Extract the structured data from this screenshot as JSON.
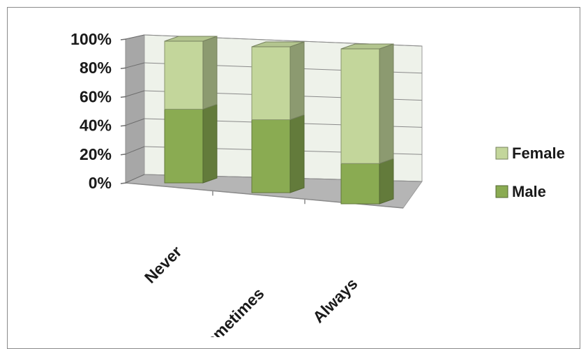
{
  "chart_data": {
    "type": "bar",
    "stacked": "percent",
    "categories": [
      "Never",
      "Sometimes",
      "Always"
    ],
    "series": [
      {
        "name": "Male",
        "values": [
          52,
          50,
          26
        ],
        "color": "#8aab52"
      },
      {
        "name": "Female",
        "values": [
          48,
          50,
          74
        ],
        "color": "#c3d69b"
      }
    ],
    "yticks": [
      "0%",
      "20%",
      "40%",
      "60%",
      "80%",
      "100%"
    ],
    "ylim": [
      0,
      100
    ],
    "grid": true,
    "legend_position": "right",
    "title": "",
    "xlabel": "",
    "ylabel": ""
  }
}
